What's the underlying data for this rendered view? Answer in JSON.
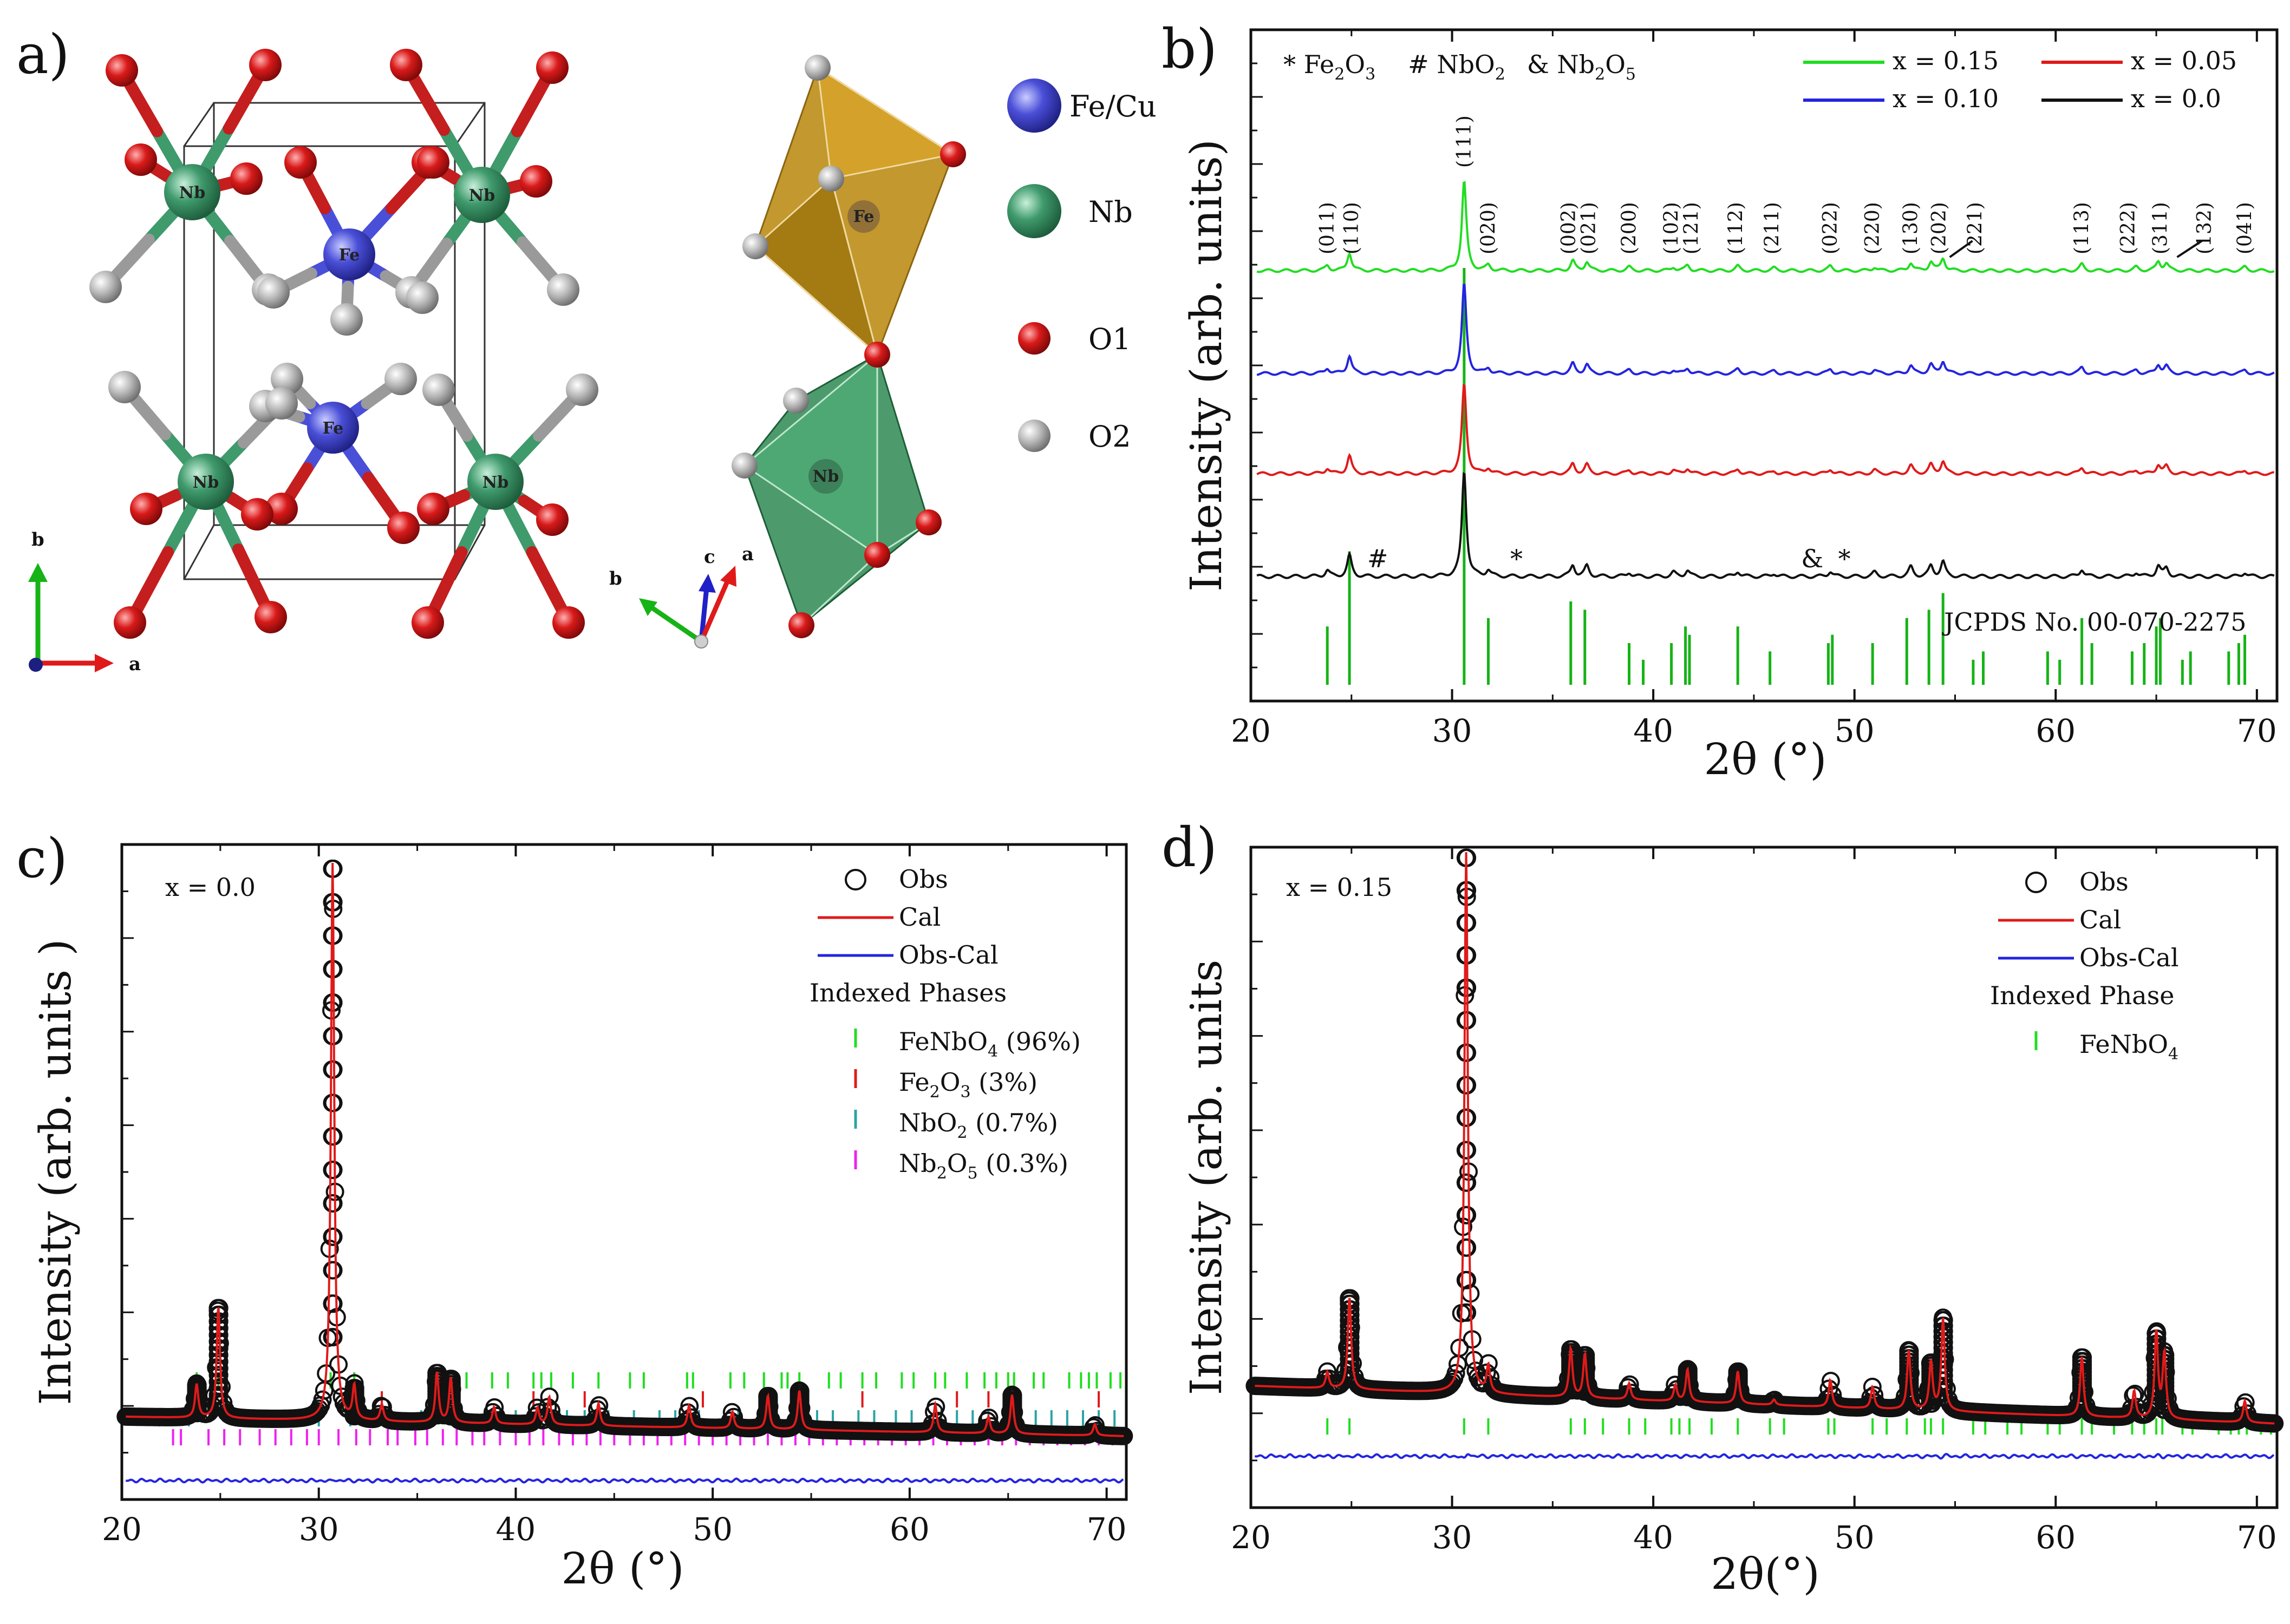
{
  "chart_data": [
    {
      "type": "diagram",
      "panel": "a)",
      "atoms_cell": [
        "Nb",
        "Nb",
        "Fe",
        "Fe",
        "Nb",
        "Nb"
      ],
      "atoms_poly": [
        "Fe",
        "Nb"
      ],
      "legend": [
        {
          "label": "Fe/Cu",
          "color": "#4a4fd8"
        },
        {
          "label": "Nb",
          "color": "#3f9a6c"
        },
        {
          "label": "O1",
          "color": "#d91a1a"
        },
        {
          "label": "O2",
          "color": "#b0b0b0"
        }
      ],
      "axes_cell": {
        "b": "b",
        "a": "a"
      },
      "axes_poly": {
        "b": "b",
        "c": "c",
        "a": "a"
      }
    },
    {
      "type": "line",
      "panel": "b)",
      "xlabel": "2θ (°)",
      "ylabel": "Intensity (arb. units)",
      "xlim": [
        20,
        71
      ],
      "xticks": [
        20,
        30,
        40,
        50,
        60,
        70
      ],
      "impurity_legend": {
        "fe2o3": "* Fe",
        "nb": "# NbO",
        "nb2o5": "& Nb",
        "sub2": "2",
        "sub3": "3",
        "sub5": "5"
      },
      "series": [
        {
          "name": "x = 0.15",
          "color": "#22dd22",
          "offset": 3
        },
        {
          "name": "x = 0.10",
          "color": "#2424e0",
          "offset": 2
        },
        {
          "name": "x = 0.05",
          "color": "#e01a1a",
          "offset": 1
        },
        {
          "name": "x = 0.0",
          "color": "#111111",
          "offset": 0
        }
      ],
      "peaks": [
        {
          "pos": 23.8,
          "h": 0.06
        },
        {
          "pos": 24.9,
          "h": 0.2
        },
        {
          "pos": 30.6,
          "h": 1.0
        },
        {
          "pos": 31.8,
          "h": 0.06
        },
        {
          "pos": 36.0,
          "h": 0.11
        },
        {
          "pos": 36.7,
          "h": 0.1
        },
        {
          "pos": 38.8,
          "h": 0.04
        },
        {
          "pos": 41.0,
          "h": 0.04
        },
        {
          "pos": 41.7,
          "h": 0.06
        },
        {
          "pos": 44.2,
          "h": 0.05
        },
        {
          "pos": 46.0,
          "h": 0.03
        },
        {
          "pos": 48.8,
          "h": 0.05
        },
        {
          "pos": 51.0,
          "h": 0.04
        },
        {
          "pos": 52.8,
          "h": 0.09
        },
        {
          "pos": 53.8,
          "h": 0.1
        },
        {
          "pos": 54.4,
          "h": 0.14
        },
        {
          "pos": 61.3,
          "h": 0.07
        },
        {
          "pos": 64.0,
          "h": 0.04
        },
        {
          "pos": 65.1,
          "h": 0.1
        },
        {
          "pos": 65.5,
          "h": 0.08
        },
        {
          "pos": 69.4,
          "h": 0.04
        }
      ],
      "hkl_labels": [
        {
          "pos": 23.8,
          "label": "(011)"
        },
        {
          "pos": 25.0,
          "label": "(110)"
        },
        {
          "pos": 30.6,
          "label": "(111)"
        },
        {
          "pos": 31.8,
          "label": "(020)"
        },
        {
          "pos": 35.8,
          "label": "(002)"
        },
        {
          "pos": 36.8,
          "label": "(021)"
        },
        {
          "pos": 38.8,
          "label": "(200)"
        },
        {
          "pos": 40.9,
          "label": "(102)"
        },
        {
          "pos": 41.9,
          "label": "(121)"
        },
        {
          "pos": 44.1,
          "label": "(112)"
        },
        {
          "pos": 45.9,
          "label": "(211)"
        },
        {
          "pos": 48.8,
          "label": "(022)"
        },
        {
          "pos": 50.9,
          "label": "(220)"
        },
        {
          "pos": 52.8,
          "label": "(130)"
        },
        {
          "pos": 54.2,
          "label": "(202)"
        },
        {
          "pos": 56.0,
          "label": "(221)"
        },
        {
          "pos": 61.3,
          "label": "(113)"
        },
        {
          "pos": 63.6,
          "label": "(222)"
        },
        {
          "pos": 65.2,
          "label": "(311)"
        },
        {
          "pos": 67.4,
          "label": "(132)"
        },
        {
          "pos": 69.4,
          "label": "(041)"
        }
      ],
      "impurity_marks": [
        {
          "pos": 26.3,
          "symbol": "#"
        },
        {
          "pos": 33.2,
          "symbol": "*"
        },
        {
          "pos": 47.9,
          "symbol": "&"
        },
        {
          "pos": 49.5,
          "symbol": "*"
        }
      ],
      "reference": {
        "label": "JCPDS No. 00-070-2275",
        "positions": [
          23.8,
          24.9,
          30.6,
          31.8,
          35.9,
          36.6,
          38.8,
          39.5,
          40.9,
          41.6,
          41.8,
          44.2,
          45.8,
          48.7,
          48.9,
          50.9,
          52.6,
          53.7,
          54.4,
          55.9,
          56.4,
          59.6,
          60.2,
          61.3,
          61.8,
          63.8,
          64.4,
          65.0,
          65.2,
          66.3,
          66.7,
          68.6,
          69.1,
          69.4
        ],
        "heights": [
          0.14,
          0.32,
          1.0,
          0.16,
          0.2,
          0.18,
          0.1,
          0.06,
          0.1,
          0.14,
          0.12,
          0.14,
          0.08,
          0.1,
          0.12,
          0.1,
          0.16,
          0.18,
          0.22,
          0.06,
          0.08,
          0.08,
          0.06,
          0.16,
          0.1,
          0.08,
          0.1,
          0.14,
          0.16,
          0.06,
          0.08,
          0.08,
          0.1,
          0.12
        ]
      }
    },
    {
      "type": "scatter",
      "panel": "c)",
      "sample": "x = 0.0",
      "xlabel": "2θ (°)",
      "ylabel": "Intensity (arb. units )",
      "xlim": [
        20,
        71
      ],
      "xticks": [
        20,
        30,
        40,
        50,
        60,
        70
      ],
      "background": [
        {
          "x": 20,
          "y": 0.1
        },
        {
          "x": 71,
          "y": 0.065
        }
      ],
      "peaks": [
        {
          "pos": 23.8,
          "h": 0.06
        },
        {
          "pos": 24.9,
          "h": 0.2
        },
        {
          "pos": 30.7,
          "h": 1.0
        },
        {
          "pos": 31.8,
          "h": 0.06
        },
        {
          "pos": 33.2,
          "h": 0.03
        },
        {
          "pos": 36.0,
          "h": 0.09
        },
        {
          "pos": 36.7,
          "h": 0.08
        },
        {
          "pos": 38.9,
          "h": 0.03
        },
        {
          "pos": 41.1,
          "h": 0.03
        },
        {
          "pos": 41.7,
          "h": 0.05
        },
        {
          "pos": 44.2,
          "h": 0.04
        },
        {
          "pos": 48.8,
          "h": 0.04
        },
        {
          "pos": 51.0,
          "h": 0.03
        },
        {
          "pos": 52.8,
          "h": 0.06
        },
        {
          "pos": 54.4,
          "h": 0.07
        },
        {
          "pos": 61.3,
          "h": 0.05
        },
        {
          "pos": 64.0,
          "h": 0.03
        },
        {
          "pos": 65.2,
          "h": 0.07
        },
        {
          "pos": 69.4,
          "h": 0.02
        }
      ],
      "legend": [
        {
          "label": "Obs",
          "kind": "circle",
          "color": "#111111"
        },
        {
          "label": "Cal",
          "kind": "line",
          "color": "#e01a1a"
        },
        {
          "label": "Obs-Cal",
          "kind": "line",
          "color": "#2424e0"
        }
      ],
      "phases_title": "Indexed Phases",
      "phases": [
        {
          "base": "FeNbO",
          "sub": "4",
          "suffix": " (96%)",
          "color": "#22dd22"
        },
        {
          "base": "Fe",
          "sub": "2",
          "mid": "O",
          "sub2": "3",
          "suffix": " (3%)",
          "color": "#e01a1a"
        },
        {
          "base": "NbO",
          "sub": "2",
          "suffix": " (0.7%)",
          "color": "#2ba3a3"
        },
        {
          "base": "Nb",
          "sub": "2",
          "mid": "O",
          "sub2": "5",
          "suffix": " (0.3%)",
          "color": "#ee22ee"
        }
      ],
      "tick_positions": [
        [
          23.8,
          24.9,
          30.6,
          31.8,
          35.9,
          36.6,
          37.5,
          38.8,
          39.6,
          40.9,
          41.3,
          41.8,
          42.9,
          44.2,
          45.8,
          46.5,
          48.7,
          49.0,
          50.9,
          51.6,
          52.6,
          53.5,
          53.8,
          54.4,
          55.9,
          56.5,
          57.6,
          58.3,
          59.6,
          60.2,
          61.3,
          61.8,
          62.9,
          63.8,
          64.4,
          65.0,
          65.3,
          66.3,
          66.8,
          68.1,
          68.7,
          69.1,
          69.5,
          70.2,
          70.7
        ],
        [
          24.2,
          33.2,
          35.6,
          40.9,
          43.5,
          49.5,
          54.1,
          57.6,
          62.4,
          64.0,
          69.6
        ],
        [
          21.9,
          23.4,
          26.1,
          28.6,
          30.0,
          31.6,
          35.2,
          35.8,
          37.2,
          39.2,
          40.0,
          41.2,
          42.6,
          43.5,
          44.7,
          46.0,
          47.3,
          48.1,
          49.3,
          51.3,
          52.3,
          53.2,
          55.3,
          56.1,
          57.4,
          58.2,
          59.3,
          60.1,
          61.6,
          62.4,
          63.2,
          64.0,
          64.8,
          65.6,
          66.4,
          67.2,
          68.0,
          68.8,
          69.6,
          70.4
        ],
        [
          22.6,
          23.0,
          24.4,
          25.2,
          26.0,
          27.0,
          27.8,
          28.6,
          29.4,
          30.0,
          31.0,
          31.9,
          32.6,
          33.5,
          34.0,
          34.9,
          35.5,
          36.3,
          37.0,
          37.8,
          38.4,
          39.2,
          40.0,
          40.7,
          41.4,
          42.2,
          42.9,
          43.6,
          44.3,
          45.0,
          45.8,
          46.5,
          47.2,
          47.9,
          48.6,
          49.3,
          50.0,
          50.7,
          51.4,
          52.1,
          52.8,
          53.5,
          54.2,
          54.9,
          55.6,
          56.3,
          57.0,
          57.7,
          58.4,
          59.1,
          59.8,
          60.5,
          61.2,
          61.9,
          62.6,
          63.3,
          64.0,
          64.7,
          65.4,
          66.1,
          66.8,
          67.5,
          68.2,
          68.9,
          69.6,
          70.3
        ]
      ]
    },
    {
      "type": "scatter",
      "panel": "d)",
      "sample": "x = 0.15",
      "xlabel": "2θ(°)",
      "ylabel": "Intensity (arb. units",
      "xlim": [
        20,
        71
      ],
      "xticks": [
        20,
        30,
        40,
        50,
        60,
        70
      ],
      "background": [
        {
          "x": 20,
          "y": 0.11
        },
        {
          "x": 71,
          "y": 0.04
        }
      ],
      "peaks": [
        {
          "pos": 23.8,
          "h": 0.03
        },
        {
          "pos": 24.9,
          "h": 0.17
        },
        {
          "pos": 30.7,
          "h": 1.0
        },
        {
          "pos": 31.8,
          "h": 0.05
        },
        {
          "pos": 35.9,
          "h": 0.09
        },
        {
          "pos": 36.6,
          "h": 0.08
        },
        {
          "pos": 38.8,
          "h": 0.03
        },
        {
          "pos": 41.1,
          "h": 0.03
        },
        {
          "pos": 41.7,
          "h": 0.06
        },
        {
          "pos": 44.2,
          "h": 0.06
        },
        {
          "pos": 46.0,
          "h": 0.01
        },
        {
          "pos": 48.8,
          "h": 0.05
        },
        {
          "pos": 50.9,
          "h": 0.04
        },
        {
          "pos": 52.7,
          "h": 0.11
        },
        {
          "pos": 53.8,
          "h": 0.09
        },
        {
          "pos": 54.4,
          "h": 0.17
        },
        {
          "pos": 61.3,
          "h": 0.11
        },
        {
          "pos": 63.9,
          "h": 0.05
        },
        {
          "pos": 65.0,
          "h": 0.16
        },
        {
          "pos": 65.4,
          "h": 0.12
        },
        {
          "pos": 69.4,
          "h": 0.04
        }
      ],
      "legend": [
        {
          "label": "Obs",
          "kind": "circle",
          "color": "#111111"
        },
        {
          "label": "Cal",
          "kind": "line",
          "color": "#e01a1a"
        },
        {
          "label": "Obs-Cal",
          "kind": "line",
          "color": "#2424e0"
        }
      ],
      "phases_title": "Indexed Phase",
      "phases": [
        {
          "base": "FeNbO",
          "sub": "4",
          "suffix": "",
          "color": "#22dd22"
        }
      ],
      "tick_positions": [
        [
          23.8,
          24.9,
          30.6,
          31.8,
          35.9,
          36.6,
          37.5,
          38.8,
          39.6,
          40.9,
          41.3,
          41.8,
          42.9,
          44.2,
          45.8,
          46.5,
          48.7,
          49.0,
          50.9,
          51.6,
          52.6,
          53.5,
          53.8,
          54.4,
          55.9,
          56.5,
          57.6,
          58.3,
          59.6,
          60.2,
          61.3,
          61.8,
          62.9,
          63.8,
          64.4,
          65.0,
          65.3,
          66.3,
          66.8,
          68.1,
          68.7,
          69.1,
          69.5,
          70.2,
          70.7
        ]
      ]
    }
  ]
}
